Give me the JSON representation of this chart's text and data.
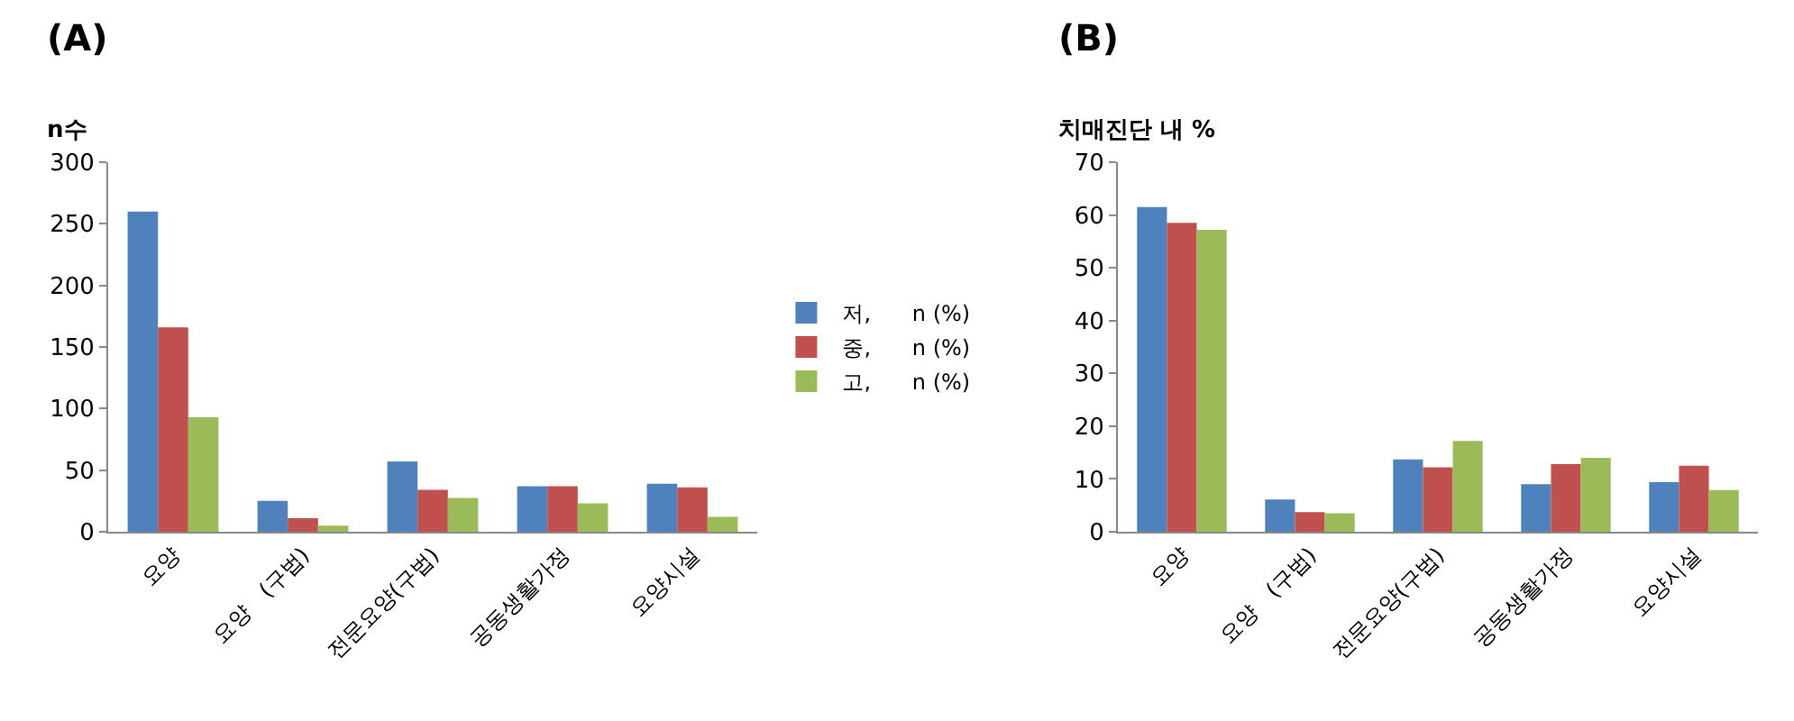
{
  "chart_data": [
    {
      "type": "bar",
      "title": "(A)",
      "ylabel": "n수",
      "categories": [
        "요양",
        "요양　(구법)",
        "전문요양(구법)",
        "공동생활가정",
        "요양시설"
      ],
      "series": [
        {
          "name": "저,      n (%)",
          "color": "#4f81bd",
          "values": [
            260,
            25,
            57,
            37,
            39
          ]
        },
        {
          "name": "중,      n (%)",
          "color": "#c0504d",
          "values": [
            166,
            11,
            34,
            37,
            36
          ]
        },
        {
          "name": "고,      n (%)",
          "color": "#9bbb59",
          "values": [
            93,
            5,
            27.5,
            23,
            12
          ]
        }
      ],
      "ylim": [
        0,
        300
      ],
      "yticks": [
        0,
        50,
        100,
        150,
        200,
        250,
        300
      ],
      "grid": false,
      "legend": "right"
    },
    {
      "type": "bar",
      "title": "(B)",
      "ylabel": "치매진단 내 %",
      "categories": [
        "요양",
        "요양　(구법)",
        "전문요양(구법)",
        "공동생활가정",
        "요양시설"
      ],
      "series": [
        {
          "color": "#4f81bd",
          "values": [
            61.5,
            6.1,
            13.7,
            9,
            9.4
          ]
        },
        {
          "color": "#c0504d",
          "values": [
            58.5,
            3.7,
            12.2,
            12.8,
            12.5
          ]
        },
        {
          "color": "#9bbb59",
          "values": [
            57.2,
            3.5,
            17.2,
            14,
            7.9
          ]
        }
      ],
      "ylim": [
        0,
        70
      ],
      "yticks": [
        0,
        10,
        20,
        30,
        40,
        50,
        60,
        70
      ],
      "grid": false
    }
  ]
}
